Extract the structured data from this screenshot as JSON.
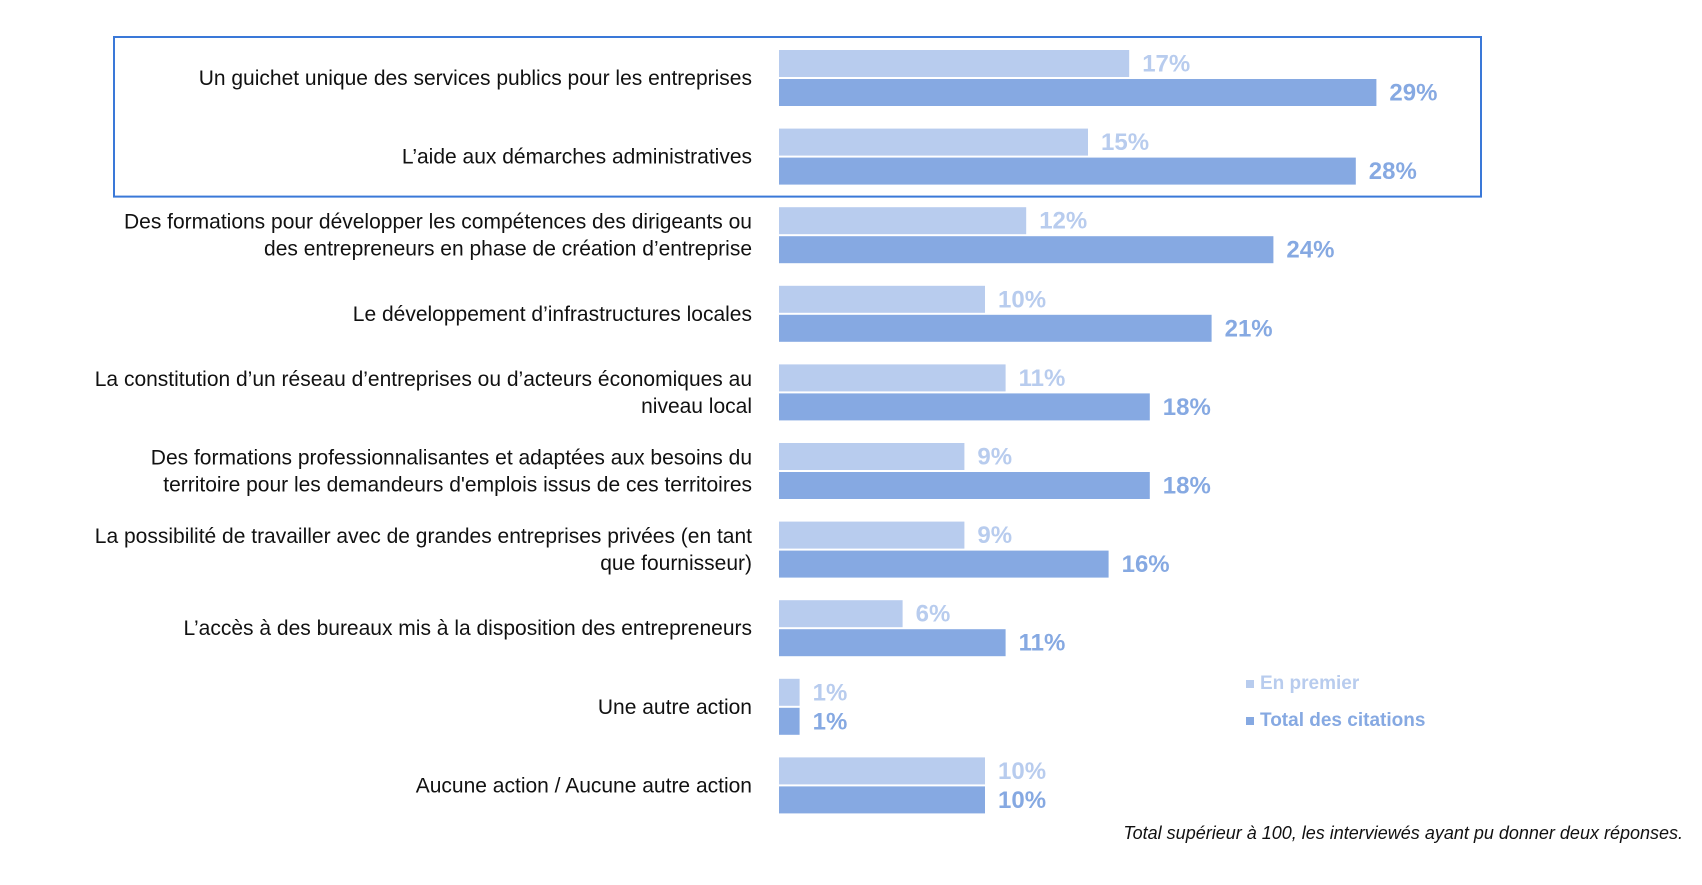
{
  "chart_data": {
    "type": "bar",
    "orientation": "horizontal",
    "categories": [
      [
        "Un guichet unique des services publics pour les entreprises"
      ],
      [
        "L’aide aux démarches administratives"
      ],
      [
        "Des formations pour développer les compétences des dirigeants ou",
        "des entrepreneurs en phase de création d’entreprise"
      ],
      [
        "Le développement d’infrastructures locales"
      ],
      [
        "La constitution d’un réseau d’entreprises ou d’acteurs économiques au",
        "niveau local"
      ],
      [
        "Des formations professionnalisantes et adaptées aux besoins du",
        "territoire pour les demandeurs d'emplois issus de ces territoires"
      ],
      [
        "La possibilité de travailler avec de grandes entreprises privées (en tant",
        "que fournisseur)"
      ],
      [
        "L’accès à des bureaux mis à la disposition des entrepreneurs"
      ],
      [
        "Une autre action"
      ],
      [
        "Aucune action / Aucune autre action"
      ]
    ],
    "series": [
      {
        "name": "En premier",
        "color": "#b8ccee",
        "values": [
          17,
          15,
          12,
          10,
          11,
          9,
          9,
          6,
          1,
          10
        ],
        "labels": [
          "17%",
          "15%",
          "12%",
          "10%",
          "11%",
          "9%",
          "9%",
          "6%",
          "1%",
          "10%"
        ]
      },
      {
        "name": "Total des citations",
        "color": "#86a9e2",
        "values": [
          29,
          28,
          24,
          21,
          18,
          18,
          16,
          11,
          1,
          10
        ],
        "labels": [
          "29%",
          "28%",
          "24%",
          "21%",
          "18%",
          "18%",
          "16%",
          "11%",
          "1%",
          "10%"
        ]
      }
    ],
    "highlight_box_categories": [
      0,
      1
    ],
    "highlight_color": "#3a78d8",
    "legend": {
      "placement": "bottom-right"
    },
    "grid": false,
    "footnote": "Total supérieur à 100, les interviewés ayant pu donner deux réponses."
  }
}
